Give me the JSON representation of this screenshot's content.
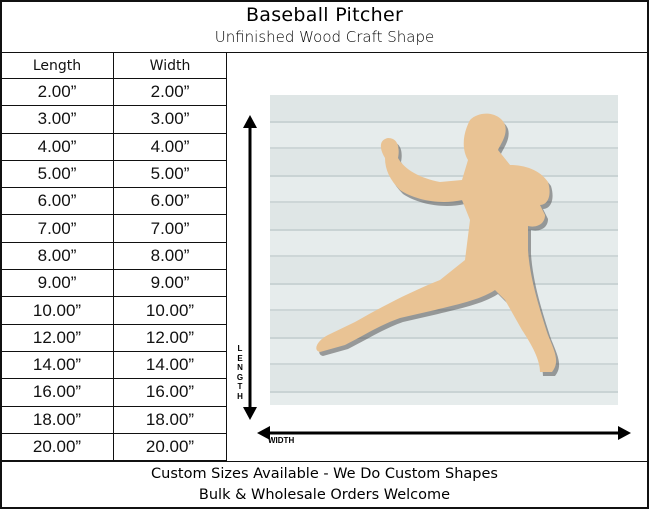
{
  "header": {
    "title": "Baseball Pitcher",
    "subtitle": "Unfinished Wood Craft Shape"
  },
  "table": {
    "columns": [
      "Length",
      "Width"
    ],
    "rows": [
      [
        "2.00”",
        "2.00”"
      ],
      [
        "3.00”",
        "3.00”"
      ],
      [
        "4.00”",
        "4.00”"
      ],
      [
        "5.00”",
        "5.00”"
      ],
      [
        "6.00”",
        "6.00”"
      ],
      [
        "7.00”",
        "7.00”"
      ],
      [
        "8.00”",
        "8.00”"
      ],
      [
        "9.00”",
        "9.00”"
      ],
      [
        "10.00”",
        "10.00”"
      ],
      [
        "12.00”",
        "12.00”"
      ],
      [
        "14.00”",
        "14.00”"
      ],
      [
        "16.00”",
        "16.00”"
      ],
      [
        "18.00”",
        "18.00”"
      ],
      [
        "20.00”",
        "20.00”"
      ]
    ]
  },
  "diagram": {
    "length_label": "LENGTH",
    "width_label": "WIDTH",
    "wood_color": "#e9c394"
  },
  "footer": {
    "line1": "Custom Sizes Available - We Do Custom Shapes",
    "line2": "Bulk & Wholesale Orders Welcome"
  }
}
